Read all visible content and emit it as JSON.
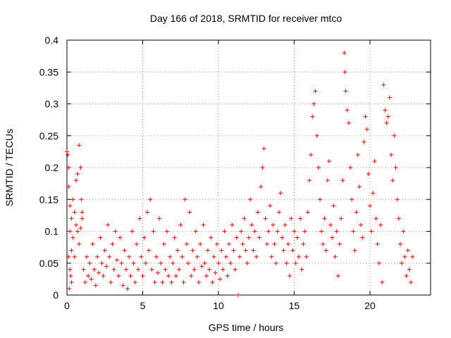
{
  "chart_data": {
    "type": "scatter",
    "title": "Day 166 of 2018, SRMTID for receiver mtco",
    "xlabel": "GPS time / hours",
    "ylabel": "SRMTID / TECUs",
    "xlim": [
      0,
      24
    ],
    "ylim": [
      0,
      0.4
    ],
    "xticks": [
      0,
      5,
      10,
      15,
      20
    ],
    "xtick_labels": [
      "0",
      "5",
      "10",
      "15",
      "20"
    ],
    "yticks": [
      0,
      0.05,
      0.1,
      0.15,
      0.2,
      0.25,
      0.3,
      0.35,
      0.4
    ],
    "ytick_labels": [
      "0",
      "0.05",
      "0.1",
      "0.15",
      "0.2",
      "0.25",
      "0.3",
      "0.35",
      "0.4"
    ],
    "grid": true,
    "marker": "plus",
    "series": [
      {
        "name": "SRMTID",
        "color": "#ff0000",
        "points": [
          [
            0.0,
            0.225
          ],
          [
            0.05,
            0.22
          ],
          [
            0.1,
            0.17
          ],
          [
            0.1,
            0.2
          ],
          [
            0.2,
            0.14
          ],
          [
            0.3,
            0.12
          ],
          [
            0.4,
            0.15
          ],
          [
            0.5,
            0.13
          ],
          [
            0.6,
            0.18
          ],
          [
            0.7,
            0.19
          ],
          [
            0.8,
            0.235
          ],
          [
            0.9,
            0.2
          ],
          [
            0.95,
            0.15
          ],
          [
            1.0,
            0.12
          ],
          [
            0.2,
            0.1
          ],
          [
            0.3,
            0.07
          ],
          [
            0.4,
            0.09
          ],
          [
            0.5,
            0.06
          ],
          [
            0.6,
            0.11
          ],
          [
            0.7,
            0.1
          ],
          [
            0.8,
            0.08
          ],
          [
            0.9,
            0.105
          ],
          [
            1.0,
            0.13
          ],
          [
            0.1,
            0.06
          ],
          [
            0.2,
            0.04
          ],
          [
            0.3,
            0.02
          ],
          [
            0.15,
            0.01
          ],
          [
            0.25,
            0.03
          ],
          [
            1.1,
            0.04
          ],
          [
            1.2,
            0.02
          ],
          [
            1.3,
            0.06
          ],
          [
            1.4,
            0.03
          ],
          [
            1.5,
            0.05
          ],
          [
            1.6,
            0.025
          ],
          [
            1.7,
            0.08
          ],
          [
            1.8,
            0.04
          ],
          [
            1.9,
            0.015
          ],
          [
            2.0,
            0.06
          ],
          [
            2.1,
            0.035
          ],
          [
            2.2,
            0.09
          ],
          [
            2.3,
            0.05
          ],
          [
            2.4,
            0.03
          ],
          [
            2.5,
            0.07
          ],
          [
            2.6,
            0.045
          ],
          [
            2.7,
            0.11
          ],
          [
            2.8,
            0.06
          ],
          [
            2.9,
            0.02
          ],
          [
            3.0,
            0.08
          ],
          [
            3.1,
            0.04
          ],
          [
            3.2,
            0.1
          ],
          [
            3.3,
            0.055
          ],
          [
            3.4,
            0.03
          ],
          [
            3.5,
            0.09
          ],
          [
            3.6,
            0.05
          ],
          [
            3.7,
            0.015
          ],
          [
            3.8,
            0.07
          ],
          [
            3.9,
            0.04
          ],
          [
            4.0,
            0.01
          ],
          [
            4.1,
            0.06
          ],
          [
            4.2,
            0.03
          ],
          [
            4.3,
            0.1
          ],
          [
            4.4,
            0.05
          ],
          [
            4.5,
            0.02
          ],
          [
            4.6,
            0.08
          ],
          [
            4.7,
            0.04
          ],
          [
            4.8,
            0.12
          ],
          [
            4.9,
            0.06
          ],
          [
            5.0,
            0.03
          ],
          [
            5.1,
            0.09
          ],
          [
            5.2,
            0.05
          ],
          [
            5.3,
            0.13
          ],
          [
            5.4,
            0.07
          ],
          [
            5.5,
            0.15
          ],
          [
            5.6,
            0.04
          ],
          [
            5.7,
            0.1
          ],
          [
            5.8,
            0.02
          ],
          [
            5.9,
            0.06
          ],
          [
            6.0,
            0.035
          ],
          [
            6.1,
            0.12
          ],
          [
            6.2,
            0.05
          ],
          [
            6.3,
            0.02
          ],
          [
            6.4,
            0.08
          ],
          [
            6.5,
            0.04
          ],
          [
            6.6,
            0.1
          ],
          [
            6.7,
            0.03
          ],
          [
            6.8,
            0.06
          ],
          [
            6.9,
            0.02
          ],
          [
            7.0,
            0.05
          ],
          [
            7.1,
            0.09
          ],
          [
            7.2,
            0.03
          ],
          [
            7.3,
            0.07
          ],
          [
            7.4,
            0.04
          ],
          [
            7.5,
            0.11
          ],
          [
            7.6,
            0.06
          ],
          [
            7.7,
            0.02
          ],
          [
            7.8,
            0.15
          ],
          [
            7.9,
            0.08
          ],
          [
            8.0,
            0.05
          ],
          [
            8.1,
            0.13
          ],
          [
            8.2,
            0.03
          ],
          [
            8.3,
            0.07
          ],
          [
            8.4,
            0.04
          ],
          [
            8.5,
            0.1
          ],
          [
            8.6,
            0.06
          ],
          [
            8.7,
            0.02
          ],
          [
            8.8,
            0.08
          ],
          [
            8.9,
            0.045
          ],
          [
            9.0,
            0.11
          ],
          [
            9.1,
            0.05
          ],
          [
            9.2,
            0.03
          ],
          [
            9.3,
            0.07
          ],
          [
            9.4,
            0.04
          ],
          [
            9.5,
            0.09
          ],
          [
            9.6,
            0.02
          ],
          [
            9.7,
            0.06
          ],
          [
            9.8,
            0.035
          ],
          [
            9.9,
            0.08
          ],
          [
            10.0,
            0.05
          ],
          [
            10.1,
            0.025
          ],
          [
            10.2,
            0.07
          ],
          [
            10.3,
            0.04
          ],
          [
            10.4,
            0.1
          ],
          [
            10.5,
            0.06
          ],
          [
            10.6,
            0.03
          ],
          [
            10.7,
            0.08
          ],
          [
            10.8,
            0.05
          ],
          [
            10.9,
            0.11
          ],
          [
            11.0,
            0.07
          ],
          [
            11.1,
            0.04
          ],
          [
            11.2,
            0.09
          ],
          [
            11.3,
            0.0
          ],
          [
            11.4,
            0.06
          ],
          [
            11.5,
            0.1
          ],
          [
            11.6,
            0.08
          ],
          [
            11.7,
            0.12
          ],
          [
            11.8,
            0.07
          ],
          [
            11.9,
            0.05
          ],
          [
            12.0,
            0.09
          ],
          [
            12.1,
            0.15
          ],
          [
            12.2,
            0.11
          ],
          [
            12.3,
            0.07
          ],
          [
            12.4,
            0.1
          ],
          [
            12.5,
            0.06
          ],
          [
            12.6,
            0.13
          ],
          [
            12.7,
            0.09
          ],
          [
            12.8,
            0.17
          ],
          [
            12.9,
            0.2
          ],
          [
            13.0,
            0.23
          ],
          [
            13.1,
            0.12
          ],
          [
            13.2,
            0.08
          ],
          [
            13.3,
            0.1
          ],
          [
            13.4,
            0.14
          ],
          [
            13.5,
            0.06
          ],
          [
            13.6,
            0.11
          ],
          [
            13.7,
            0.08
          ],
          [
            13.8,
            0.05
          ],
          [
            13.9,
            0.1
          ],
          [
            14.0,
            0.13
          ],
          [
            14.1,
            0.16
          ],
          [
            14.2,
            0.09
          ],
          [
            14.3,
            0.07
          ],
          [
            14.4,
            0.11
          ],
          [
            14.5,
            0.05
          ],
          [
            14.6,
            0.08
          ],
          [
            14.7,
            0.03
          ],
          [
            14.8,
            0.12
          ],
          [
            14.9,
            0.07
          ],
          [
            15.0,
            0.1
          ],
          [
            15.1,
            0.05
          ],
          [
            15.2,
            0.09
          ],
          [
            15.3,
            0.06
          ],
          [
            15.4,
            0.12
          ],
          [
            15.5,
            0.04
          ],
          [
            15.6,
            0.08
          ],
          [
            15.7,
            0.1
          ],
          [
            15.8,
            0.06
          ],
          [
            15.9,
            0.13
          ],
          [
            16.0,
            0.18
          ],
          [
            16.1,
            0.22
          ],
          [
            16.2,
            0.28
          ],
          [
            16.3,
            0.3
          ],
          [
            16.4,
            0.32
          ],
          [
            16.5,
            0.25
          ],
          [
            16.6,
            0.2
          ],
          [
            16.7,
            0.15
          ],
          [
            16.8,
            0.1
          ],
          [
            16.9,
            0.08
          ],
          [
            17.0,
            0.12
          ],
          [
            17.1,
            0.07
          ],
          [
            17.2,
            0.18
          ],
          [
            17.3,
            0.21
          ],
          [
            17.4,
            0.11
          ],
          [
            17.5,
            0.09
          ],
          [
            17.6,
            0.14
          ],
          [
            17.7,
            0.06
          ],
          [
            17.8,
            0.1
          ],
          [
            17.9,
            0.03
          ],
          [
            18.0,
            0.08
          ],
          [
            18.1,
            0.12
          ],
          [
            18.2,
            0.18
          ],
          [
            18.3,
            0.38
          ],
          [
            18.35,
            0.35
          ],
          [
            18.4,
            0.32
          ],
          [
            18.5,
            0.29
          ],
          [
            18.6,
            0.27
          ],
          [
            18.7,
            0.2
          ],
          [
            18.8,
            0.15
          ],
          [
            18.9,
            0.1
          ],
          [
            19.0,
            0.07
          ],
          [
            19.1,
            0.13
          ],
          [
            19.2,
            0.22
          ],
          [
            19.3,
            0.17
          ],
          [
            19.4,
            0.11
          ],
          [
            19.5,
            0.09
          ],
          [
            19.6,
            0.24
          ],
          [
            19.7,
            0.28
          ],
          [
            19.8,
            0.26
          ],
          [
            19.9,
            0.19
          ],
          [
            20.0,
            0.14
          ],
          [
            20.1,
            0.1
          ],
          [
            20.2,
            0.16
          ],
          [
            20.3,
            0.21
          ],
          [
            20.4,
            0.12
          ],
          [
            20.5,
            0.08
          ],
          [
            20.6,
            0.05
          ],
          [
            20.7,
            0.11
          ],
          [
            20.8,
            0.02
          ],
          [
            20.9,
            0.33
          ],
          [
            21.0,
            0.29
          ],
          [
            21.1,
            0.27
          ],
          [
            21.2,
            0.28
          ],
          [
            21.3,
            0.31
          ],
          [
            21.4,
            0.22
          ],
          [
            21.5,
            0.18
          ],
          [
            21.6,
            0.25
          ],
          [
            21.7,
            0.2
          ],
          [
            21.8,
            0.15
          ],
          [
            21.9,
            0.12
          ],
          [
            22.0,
            0.08
          ],
          [
            22.1,
            0.05
          ],
          [
            22.2,
            0.1
          ],
          [
            22.3,
            0.06
          ],
          [
            22.4,
            0.03
          ],
          [
            22.5,
            0.07
          ],
          [
            22.6,
            0.04
          ],
          [
            22.7,
            0.02
          ],
          [
            22.8,
            0.06
          ]
        ]
      }
    ]
  }
}
